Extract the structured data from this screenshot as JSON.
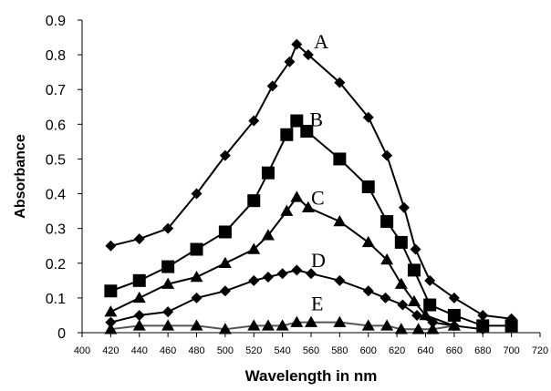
{
  "chart_data": {
    "type": "line",
    "xlabel": "Wavelength in nm",
    "ylabel": "Absorbance",
    "xlim": [
      400,
      720
    ],
    "ylim": [
      0,
      0.9
    ],
    "x_ticks": [
      "400",
      "420",
      "440",
      "460",
      "480",
      "500",
      "520",
      "540",
      "560",
      "580",
      "600",
      "620",
      "640",
      "660",
      "680",
      "700",
      "720"
    ],
    "y_ticks": [
      "0",
      "0.1",
      "0.2",
      "0.3",
      "0.4",
      "0.5",
      "0.6",
      "0.7",
      "0.8",
      "0.9"
    ],
    "grid": false,
    "series": [
      {
        "name": "A",
        "marker": "diamond",
        "color": "#000000",
        "x": [
          420,
          440,
          460,
          480,
          500,
          520,
          533,
          545,
          550,
          558,
          580,
          600,
          613,
          625,
          633,
          643,
          660,
          680,
          700
        ],
        "y": [
          0.25,
          0.27,
          0.3,
          0.4,
          0.51,
          0.61,
          0.71,
          0.78,
          0.83,
          0.8,
          0.72,
          0.62,
          0.51,
          0.36,
          0.24,
          0.15,
          0.1,
          0.05,
          0.04
        ]
      },
      {
        "name": "B",
        "marker": "square",
        "color": "#000000",
        "x": [
          420,
          440,
          460,
          480,
          500,
          520,
          530,
          543,
          550,
          557,
          580,
          600,
          613,
          623,
          632,
          643,
          660,
          680,
          700
        ],
        "y": [
          0.12,
          0.15,
          0.19,
          0.24,
          0.29,
          0.38,
          0.46,
          0.57,
          0.61,
          0.58,
          0.5,
          0.42,
          0.32,
          0.26,
          0.18,
          0.08,
          0.05,
          0.02,
          0.02
        ]
      },
      {
        "name": "C",
        "marker": "triangle",
        "color": "#000000",
        "x": [
          420,
          440,
          460,
          480,
          500,
          520,
          530,
          543,
          550,
          558,
          580,
          600,
          613,
          623,
          632,
          640,
          660
        ],
        "y": [
          0.06,
          0.1,
          0.14,
          0.16,
          0.2,
          0.24,
          0.28,
          0.35,
          0.39,
          0.36,
          0.32,
          0.26,
          0.21,
          0.14,
          0.09,
          0.05,
          0.02
        ]
      },
      {
        "name": "D",
        "marker": "diamond",
        "color": "#000000",
        "x": [
          420,
          440,
          460,
          480,
          500,
          520,
          530,
          540,
          550,
          560,
          580,
          600,
          612,
          624,
          634,
          645,
          660,
          680
        ],
        "y": [
          0.03,
          0.05,
          0.06,
          0.1,
          0.12,
          0.15,
          0.16,
          0.17,
          0.18,
          0.17,
          0.15,
          0.12,
          0.1,
          0.08,
          0.05,
          0.03,
          0.02,
          0.01
        ]
      },
      {
        "name": "E",
        "marker": "triangle",
        "color": "#555555",
        "x": [
          420,
          440,
          460,
          480,
          500,
          520,
          530,
          540,
          550,
          560,
          580,
          600,
          613,
          623,
          635,
          645,
          660
        ],
        "y": [
          0.01,
          0.02,
          0.02,
          0.02,
          0.01,
          0.02,
          0.02,
          0.02,
          0.03,
          0.03,
          0.03,
          0.02,
          0.02,
          0.01,
          0.01,
          0.01,
          0.02
        ]
      }
    ]
  }
}
